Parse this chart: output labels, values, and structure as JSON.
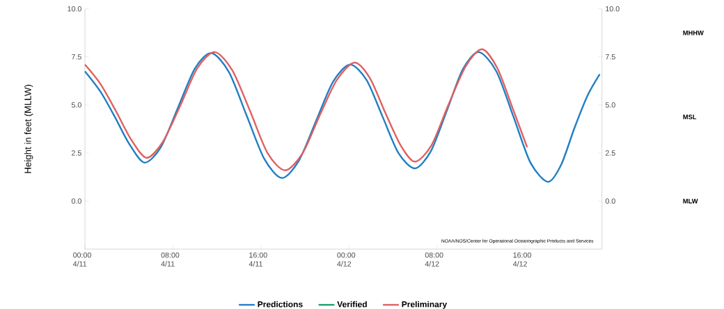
{
  "chart_data": {
    "type": "line",
    "ylabel": "Height in feet (MLLW)",
    "xlim": [
      "--04-11T00:00",
      "--04-12T23:00"
    ],
    "ylim": [
      -2.5,
      10
    ],
    "yticks": [
      {
        "value": 0,
        "label": "0.0"
      },
      {
        "value": 2.5,
        "label": "2.5"
      },
      {
        "value": 5,
        "label": "5.0"
      },
      {
        "value": 7.5,
        "label": "7.5"
      },
      {
        "value": 10,
        "label": "10.0"
      }
    ],
    "y2lim": [
      -2.5,
      10
    ],
    "y2ticks": [
      {
        "value": 0,
        "label": "0.0"
      },
      {
        "value": 2.5,
        "label": "2.5"
      },
      {
        "value": 5,
        "label": "5.0"
      },
      {
        "value": 7.5,
        "label": "7.5"
      },
      {
        "value": 10,
        "label": "10.0"
      }
    ],
    "xticks": [
      {
        "value": "--04-11T00:00",
        "label": "00:00 4/11"
      },
      {
        "value": "--04-11T08:00",
        "label": "08:00 4/11"
      },
      {
        "value": "--04-11T16:00",
        "label": "16:00 4/11"
      },
      {
        "value": "--04-12T00:00",
        "label": "00:00 4/12"
      },
      {
        "value": "--04-12T08:00",
        "label": "08:00 4/12"
      },
      {
        "value": "--04-12T16:00",
        "label": "16:00 4/12"
      }
    ],
    "legend": "bottom",
    "series": [
      {
        "name": "Predictions",
        "color": "#1f7fc4",
        "x": [
          "--04-11T00:00",
          "--04-11T01:24",
          "--04-11T02:42",
          "--04-11T04:00",
          "--04-11T05:24",
          "--04-11T06:54",
          "--04-11T08:27",
          "--04-11T10:00",
          "--04-11T11:30",
          "--04-11T13:06",
          "--04-11T14:42",
          "--04-11T16:18",
          "--04-11T17:54",
          "--04-11T19:27",
          "--04-11T21:00",
          "--04-11T22:33",
          "--04-12T00:06",
          "--04-12T01:36",
          "--04-12T03:03",
          "--04-12T04:30",
          "--04-12T06:00",
          "--04-12T07:27",
          "--04-12T08:54",
          "--04-12T10:21",
          "--04-12T11:48",
          "--04-12T13:24",
          "--04-12T14:57",
          "--04-12T16:30",
          "--04-12T18:06",
          "--04-12T19:18",
          "--04-12T20:30",
          "--04-12T21:42",
          "--04-12T22:48"
        ],
        "values": [
          6.75,
          5.7,
          4.4,
          3.0,
          2.0,
          2.8,
          4.85,
          6.9,
          7.7,
          6.7,
          4.45,
          2.2,
          1.2,
          2.1,
          4.15,
          6.2,
          7.1,
          6.3,
          4.4,
          2.5,
          1.7,
          2.6,
          4.7,
          6.85,
          7.75,
          6.75,
          4.4,
          2.0,
          1.0,
          1.9,
          3.8,
          5.5,
          6.6
        ]
      },
      {
        "name": "Verified",
        "color": "#1a9e6e"
      },
      {
        "name": "Preliminary",
        "color": "#e06060",
        "x": [
          "--04-11T00:00",
          "--04-11T01:24",
          "--04-11T02:48",
          "--04-11T04:12",
          "--04-11T05:36",
          "--04-11T07:06",
          "--04-11T08:42",
          "--04-11T10:12",
          "--04-11T11:48",
          "--04-11T13:24",
          "--04-11T15:00",
          "--04-11T16:36",
          "--04-11T18:12",
          "--04-11T19:48",
          "--04-11T21:18",
          "--04-11T22:54",
          "--04-12T00:30",
          "--04-12T01:54",
          "--04-12T03:18",
          "--04-12T04:42",
          "--04-12T06:00",
          "--04-12T07:30",
          "--04-12T09:00",
          "--04-12T10:36",
          "--04-12T12:06",
          "--04-12T13:30",
          "--04-12T14:54",
          "--04-12T16:12"
        ],
        "values": [
          7.1,
          6.1,
          4.7,
          3.2,
          2.25,
          3.1,
          5.0,
          6.9,
          7.75,
          6.8,
          4.7,
          2.5,
          1.6,
          2.5,
          4.4,
          6.3,
          7.2,
          6.4,
          4.6,
          2.9,
          2.05,
          2.9,
          4.95,
          7.0,
          7.9,
          6.9,
          4.8,
          2.8
        ]
      }
    ],
    "annotations": [
      "NOAA/NOS/Center for Operational Oceanographic Products and Services",
      "MHHW",
      "MSL",
      "MLW"
    ]
  }
}
